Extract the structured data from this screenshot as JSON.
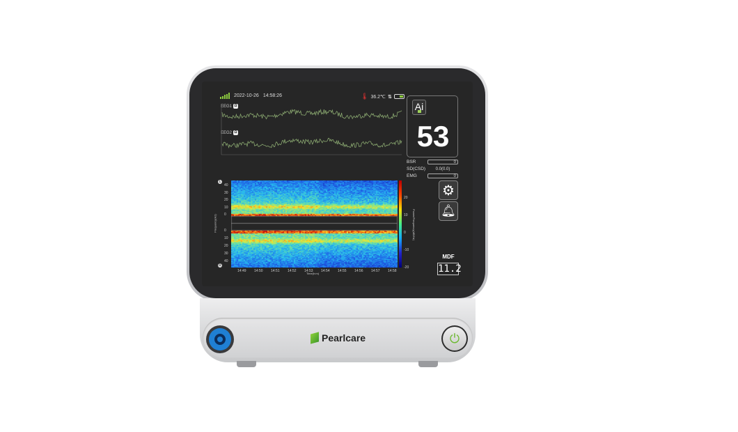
{
  "device": {
    "brand": "Pearlcare",
    "port_icon": "sensor-connector",
    "power_icon": "power-icon"
  },
  "status": {
    "date": "2022-10-26",
    "time": "14:58:26",
    "temperature": "36.2℃",
    "signal_level": 5,
    "battery_icon": "battery-icon",
    "sync_icon": "arrows-up-down-icon",
    "accent": "#8dcc3f"
  },
  "eeg": [
    {
      "label": "EEG1",
      "badge": "Ω"
    },
    {
      "label": "EEG2",
      "badge": "Ω"
    }
  ],
  "index": {
    "badge": "Ai",
    "value": "53"
  },
  "metrics": [
    {
      "label": "BSR",
      "value": "0"
    },
    {
      "label": "SD(CSD)",
      "value": "0.0(0.0)"
    },
    {
      "label": "EMG",
      "value": "0"
    }
  ],
  "buttons": {
    "settings_icon": "gear-icon",
    "alarm_icon": "bell-icon"
  },
  "mdf": {
    "label": "MDF",
    "value": "11.2"
  },
  "spectrogram": {
    "y_ticks_upper": [
      "40",
      "30",
      "20",
      "10",
      "0"
    ],
    "y_ticks_lower": [
      "0",
      "10",
      "20",
      "30",
      "40"
    ],
    "ylabel": "Frequency(Hz)",
    "x_ticks": [
      "14:49",
      "14:50",
      "14:51",
      "14:52",
      "14:53",
      "14:54",
      "14:55",
      "14:56",
      "14:57",
      "14:58"
    ],
    "xlabel": "Time(h:m)",
    "colorbar_ticks": [
      "20",
      "10",
      "0",
      "-10",
      "-20"
    ],
    "colorbar_label": "Power/Frequency(dB/Hz)",
    "channel_badges": [
      "L",
      "R"
    ]
  }
}
